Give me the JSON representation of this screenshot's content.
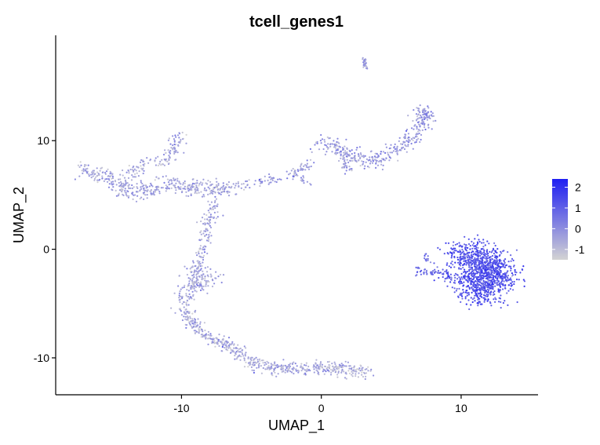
{
  "chart_data": {
    "type": "scatter",
    "title": "tcell_genes1",
    "xlabel": "UMAP_1",
    "ylabel": "UMAP_2",
    "xlim": [
      -19,
      15.5
    ],
    "ylim": [
      -13.4,
      19.7
    ],
    "x_ticks": [
      {
        "value": -10,
        "label": "-10"
      },
      {
        "value": 0,
        "label": "0"
      },
      {
        "value": 10,
        "label": "10"
      }
    ],
    "y_ticks": [
      {
        "value": -10,
        "label": "-10"
      },
      {
        "value": 0,
        "label": "0"
      },
      {
        "value": 10,
        "label": "10"
      }
    ],
    "grid": false,
    "color_scale": {
      "low_color": "#d3d3d3",
      "high_color": "#1e1ef2",
      "min": -1.5,
      "max": 2.4,
      "ticks": [
        {
          "value": 2,
          "label": "2"
        },
        {
          "value": 1,
          "label": "1"
        },
        {
          "value": 0,
          "label": "0"
        },
        {
          "value": -1,
          "label": "-1"
        }
      ],
      "legend_position": "right"
    },
    "clusters": [
      {
        "name": "top-small",
        "path": [
          [
            3.0,
            17.6
          ],
          [
            3.2,
            16.6
          ]
        ],
        "n": 25,
        "spread": 0.1,
        "expr": -0.2
      },
      {
        "name": "left-arm",
        "path": [
          [
            -17.2,
            7.3
          ],
          [
            -15.5,
            6.8
          ],
          [
            -14.2,
            5.5
          ],
          [
            -13.0,
            5.2
          ],
          [
            -11.0,
            6.0
          ],
          [
            -8.5,
            5.5
          ],
          [
            -6.5,
            5.6
          ]
        ],
        "n": 420,
        "spread": 0.35,
        "expr": -0.5
      },
      {
        "name": "left-top-branch",
        "path": [
          [
            -14.0,
            6.5
          ],
          [
            -12.5,
            8.0
          ],
          [
            -11.0,
            8.2
          ],
          [
            -10.1,
            10.9
          ]
        ],
        "n": 130,
        "spread": 0.3,
        "expr": -0.5
      },
      {
        "name": "mid-bridge",
        "path": [
          [
            -6.0,
            5.8
          ],
          [
            -4.0,
            6.3
          ],
          [
            -2.2,
            6.8
          ],
          [
            -1.5,
            7.2
          ],
          [
            -0.8,
            8.0
          ]
        ],
        "n": 90,
        "spread": 0.2,
        "expr": -0.4
      },
      {
        "name": "mid-tail",
        "path": [
          [
            -2.1,
            7.2
          ],
          [
            -0.8,
            5.8
          ]
        ],
        "n": 20,
        "spread": 0.15,
        "expr": -0.4
      },
      {
        "name": "upper-center",
        "path": [
          [
            -0.3,
            9.8
          ],
          [
            1.2,
            9.5
          ],
          [
            2.5,
            8.4
          ],
          [
            3.8,
            8.0
          ],
          [
            5.5,
            9.5
          ],
          [
            6.8,
            10.7
          ],
          [
            7.3,
            12.6
          ]
        ],
        "n": 330,
        "spread": 0.35,
        "expr": -0.3
      },
      {
        "name": "upper-center-down",
        "path": [
          [
            1.5,
            9.0
          ],
          [
            2.0,
            7.0
          ]
        ],
        "n": 40,
        "spread": 0.3,
        "expr": -0.4
      },
      {
        "name": "upper-right-tip",
        "path": [
          [
            7.0,
            13.0
          ],
          [
            7.8,
            12.0
          ]
        ],
        "n": 40,
        "spread": 0.25,
        "expr": 0.0
      },
      {
        "name": "vertical-stem",
        "path": [
          [
            -7.7,
            4.3
          ],
          [
            -8.2,
            1.5
          ],
          [
            -8.6,
            -0.5
          ],
          [
            -9.0,
            -2.5
          ],
          [
            -10.0,
            -4.8
          ]
        ],
        "n": 200,
        "spread": 0.3,
        "expr": -0.5
      },
      {
        "name": "stem-blob",
        "path": [
          [
            -9.0,
            -2.0
          ],
          [
            -8.0,
            -3.0
          ],
          [
            -9.5,
            -3.5
          ]
        ],
        "n": 110,
        "spread": 0.45,
        "expr": -0.5
      },
      {
        "name": "lower-arc",
        "path": [
          [
            -10.0,
            -5.5
          ],
          [
            -8.5,
            -7.8
          ],
          [
            -6.5,
            -9.0
          ],
          [
            -5.0,
            -10.5
          ],
          [
            -3.0,
            -11.0
          ],
          [
            -1.0,
            -11.0
          ],
          [
            1.0,
            -10.9
          ],
          [
            3.3,
            -11.4
          ]
        ],
        "n": 560,
        "spread": 0.3,
        "expr": -0.6
      },
      {
        "name": "right-bridge",
        "path": [
          [
            6.8,
            -2.0
          ],
          [
            8.5,
            -2.2
          ],
          [
            9.5,
            -2.8
          ]
        ],
        "n": 70,
        "spread": 0.2,
        "expr": 0.8
      },
      {
        "name": "right-small",
        "path": [
          [
            7.5,
            -0.5
          ],
          [
            7.7,
            -1.2
          ]
        ],
        "n": 12,
        "spread": 0.1,
        "expr": 0.5
      },
      {
        "name": "right-blob",
        "path": [
          [
            10.0,
            -0.5
          ],
          [
            11.5,
            -1.0
          ],
          [
            12.5,
            -2.5
          ],
          [
            11.5,
            -3.8
          ],
          [
            10.5,
            -3.0
          ]
        ],
        "n": 1100,
        "spread": 0.85,
        "expr": 1.3
      }
    ]
  }
}
